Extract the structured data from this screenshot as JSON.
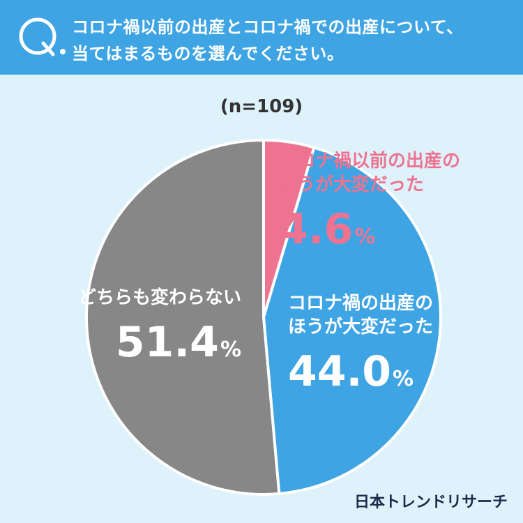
{
  "header": {
    "question_line1": "コロナ禍以前の出産とコロナ禍での出産について、",
    "question_line2": "当てはまるものを選んでください。",
    "q_icon": "q-icon"
  },
  "sample": "(n=109)",
  "chart_data": {
    "type": "pie",
    "start_angle_deg": 0,
    "direction": "clockwise",
    "slices": [
      {
        "label_line1": "コロナ禍以前の出産の",
        "label_line2": "ほうが大変だった",
        "value": 4.6,
        "value_text": "4.6",
        "color": "#ee7390",
        "label_color": "#ee7390"
      },
      {
        "label_line1": "コロナ禍の出産の",
        "label_line2": "ほうが大変だった",
        "value": 44.0,
        "value_text": "44.0",
        "color": "#3ea4e3",
        "label_color": "#ffffff"
      },
      {
        "label_line1": "どちらも変わらない",
        "label_line2": "",
        "value": 51.4,
        "value_text": "51.4",
        "color": "#878787",
        "label_color": "#ffffff"
      }
    ],
    "unit": "%"
  },
  "brand": "日本トレンドリサーチ"
}
